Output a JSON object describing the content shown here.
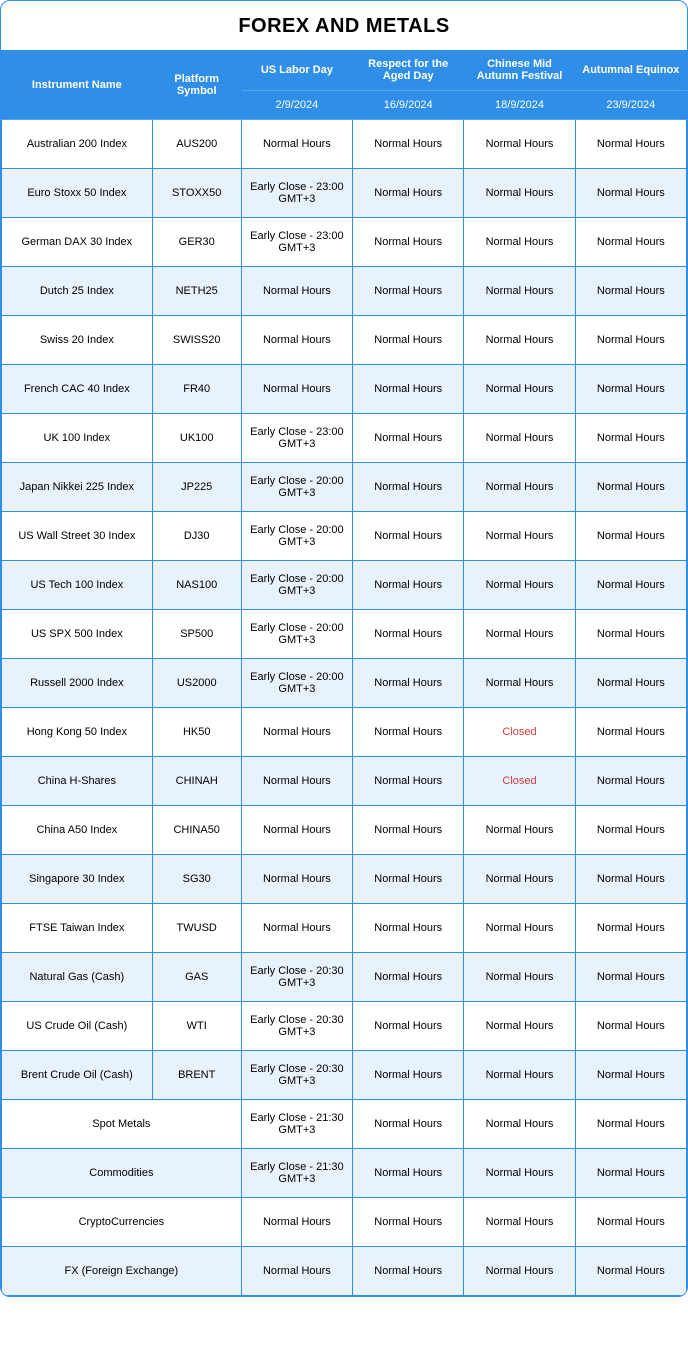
{
  "title": "FOREX AND METALS",
  "columns": {
    "name": "Instrument Name",
    "symbol": "Platform Symbol",
    "holidays": [
      {
        "label": "US Labor Day",
        "date": "2/9/2024"
      },
      {
        "label": "Respect for the Aged Day",
        "date": "16/9/2024"
      },
      {
        "label": "Chinese Mid Autumn Festival",
        "date": "18/9/2024"
      },
      {
        "label": "Autumnal Equinox",
        "date": "23/9/2024"
      }
    ]
  },
  "rows": [
    {
      "name": "Australian 200 Index",
      "symbol": "AUS200",
      "cells": [
        "Normal Hours",
        "Normal Hours",
        "Normal Hours",
        "Normal Hours"
      ]
    },
    {
      "name": "Euro Stoxx 50 Index",
      "symbol": "STOXX50",
      "cells": [
        "Early Close - 23:00 GMT+3",
        "Normal Hours",
        "Normal Hours",
        "Normal Hours"
      ]
    },
    {
      "name": "German DAX 30 Index",
      "symbol": "GER30",
      "cells": [
        "Early Close - 23:00 GMT+3",
        "Normal Hours",
        "Normal Hours",
        "Normal Hours"
      ]
    },
    {
      "name": "Dutch 25 Index",
      "symbol": "NETH25",
      "cells": [
        "Normal Hours",
        "Normal Hours",
        "Normal Hours",
        "Normal Hours"
      ]
    },
    {
      "name": "Swiss 20 Index",
      "symbol": "SWISS20",
      "cells": [
        "Normal Hours",
        "Normal Hours",
        "Normal Hours",
        "Normal Hours"
      ]
    },
    {
      "name": "French CAC 40 Index",
      "symbol": "FR40",
      "cells": [
        "Normal Hours",
        "Normal Hours",
        "Normal Hours",
        "Normal Hours"
      ]
    },
    {
      "name": "UK 100 Index",
      "symbol": "UK100",
      "cells": [
        "Early Close - 23:00 GMT+3",
        "Normal Hours",
        "Normal Hours",
        "Normal Hours"
      ]
    },
    {
      "name": "Japan Nikkei 225 Index",
      "symbol": "JP225",
      "cells": [
        "Early Close - 20:00 GMT+3",
        "Normal Hours",
        "Normal Hours",
        "Normal Hours"
      ]
    },
    {
      "name": "US Wall Street 30 Index",
      "symbol": "DJ30",
      "cells": [
        "Early Close - 20:00 GMT+3",
        "Normal Hours",
        "Normal Hours",
        "Normal Hours"
      ]
    },
    {
      "name": "US Tech 100 Index",
      "symbol": "NAS100",
      "cells": [
        "Early Close - 20:00 GMT+3",
        "Normal Hours",
        "Normal Hours",
        "Normal Hours"
      ]
    },
    {
      "name": "US SPX 500 Index",
      "symbol": "SP500",
      "cells": [
        "Early Close - 20:00 GMT+3",
        "Normal Hours",
        "Normal Hours",
        "Normal Hours"
      ]
    },
    {
      "name": "Russell 2000 Index",
      "symbol": "US2000",
      "cells": [
        "Early Close - 20:00 GMT+3",
        "Normal Hours",
        "Normal Hours",
        "Normal Hours"
      ]
    },
    {
      "name": "Hong Kong 50 Index",
      "symbol": "HK50",
      "cells": [
        "Normal Hours",
        "Normal Hours",
        "Closed",
        "Normal Hours"
      ],
      "closed": [
        2
      ]
    },
    {
      "name": "China H-Shares",
      "symbol": "CHINAH",
      "cells": [
        "Normal Hours",
        "Normal Hours",
        "Closed",
        "Normal Hours"
      ],
      "closed": [
        2
      ]
    },
    {
      "name": "China A50 Index",
      "symbol": "CHINA50",
      "cells": [
        "Normal Hours",
        "Normal Hours",
        "Normal Hours",
        "Normal Hours"
      ]
    },
    {
      "name": "Singapore 30 Index",
      "symbol": "SG30",
      "cells": [
        "Normal Hours",
        "Normal Hours",
        "Normal Hours",
        "Normal Hours"
      ]
    },
    {
      "name": "FTSE Taiwan Index",
      "symbol": "TWUSD",
      "cells": [
        "Normal Hours",
        "Normal Hours",
        "Normal Hours",
        "Normal Hours"
      ]
    },
    {
      "name": "Natural Gas (Cash)",
      "symbol": "GAS",
      "cells": [
        "Early Close - 20:30 GMT+3",
        "Normal Hours",
        "Normal Hours",
        "Normal Hours"
      ]
    },
    {
      "name": "US Crude Oil (Cash)",
      "symbol": "WTI",
      "cells": [
        "Early Close - 20:30 GMT+3",
        "Normal Hours",
        "Normal Hours",
        "Normal Hours"
      ]
    },
    {
      "name": "Brent Crude Oil (Cash)",
      "symbol": "BRENT",
      "cells": [
        "Early Close - 20:30 GMT+3",
        "Normal Hours",
        "Normal Hours",
        "Normal Hours"
      ]
    },
    {
      "name": "Spot Metals",
      "merged": true,
      "cells": [
        "Early Close - 21:30 GMT+3",
        "Normal Hours",
        "Normal Hours",
        "Normal Hours"
      ]
    },
    {
      "name": "Commodities",
      "merged": true,
      "cells": [
        "Early Close - 21:30 GMT+3",
        "Normal Hours",
        "Normal Hours",
        "Normal Hours"
      ]
    },
    {
      "name": "CryptoCurrencies",
      "merged": true,
      "cells": [
        "Normal Hours",
        "Normal Hours",
        "Normal Hours",
        "Normal Hours"
      ]
    },
    {
      "name": "FX (Foreign Exchange)",
      "merged": true,
      "cells": [
        "Normal Hours",
        "Normal Hours",
        "Normal Hours",
        "Normal Hours"
      ]
    }
  ],
  "colors": {
    "header_bg": "#2f8ee7",
    "alt_row_bg": "#e8f2fb",
    "closed_text": "#d23a3a",
    "border": "#2f8ee7"
  }
}
